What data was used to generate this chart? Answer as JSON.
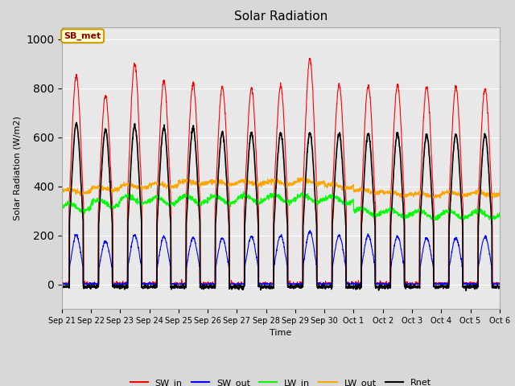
{
  "title": "Solar Radiation",
  "xlabel": "Time",
  "ylabel": "Solar Radiation (W/m2)",
  "ylim": [
    -100,
    1050
  ],
  "fig_bg_color": "#d8d8d8",
  "plot_bg_color": "#e8e8e8",
  "annotation_text": "SB_met",
  "annotation_bg": "#ffffcc",
  "annotation_border": "#cc9900",
  "tick_labels": [
    "Sep 21",
    "Sep 22",
    "Sep 23",
    "Sep 24",
    "Sep 25",
    "Sep 26",
    "Sep 27",
    "Sep 28",
    "Sep 29",
    "Sep 30",
    "Oct 1",
    "Oct 2",
    "Oct 3",
    "Oct 4",
    "Oct 5",
    "Oct 6"
  ],
  "legend_entries": [
    "SW_in",
    "SW_out",
    "LW_in",
    "LW_out",
    "Rnet"
  ],
  "n_days": 15,
  "sw_in_peaks": [
    850,
    770,
    900,
    830,
    820,
    805,
    800,
    810,
    920,
    815,
    810,
    810,
    805,
    805,
    800
  ],
  "sw_out_peaks": [
    200,
    175,
    200,
    195,
    190,
    190,
    195,
    200,
    215,
    200,
    200,
    195,
    190,
    190,
    195
  ],
  "lw_in_day_vals": [
    315,
    330,
    345,
    340,
    345,
    345,
    350,
    350,
    350,
    345,
    295,
    290,
    285,
    285,
    285
  ],
  "lw_out_day_vals": [
    380,
    390,
    400,
    405,
    415,
    415,
    415,
    415,
    420,
    400,
    380,
    370,
    365,
    370,
    370
  ],
  "rnet_peaks": [
    655,
    630,
    648,
    640,
    638,
    618,
    618,
    618,
    618,
    615,
    615,
    615,
    610,
    612,
    610
  ],
  "points_per_day": 144
}
